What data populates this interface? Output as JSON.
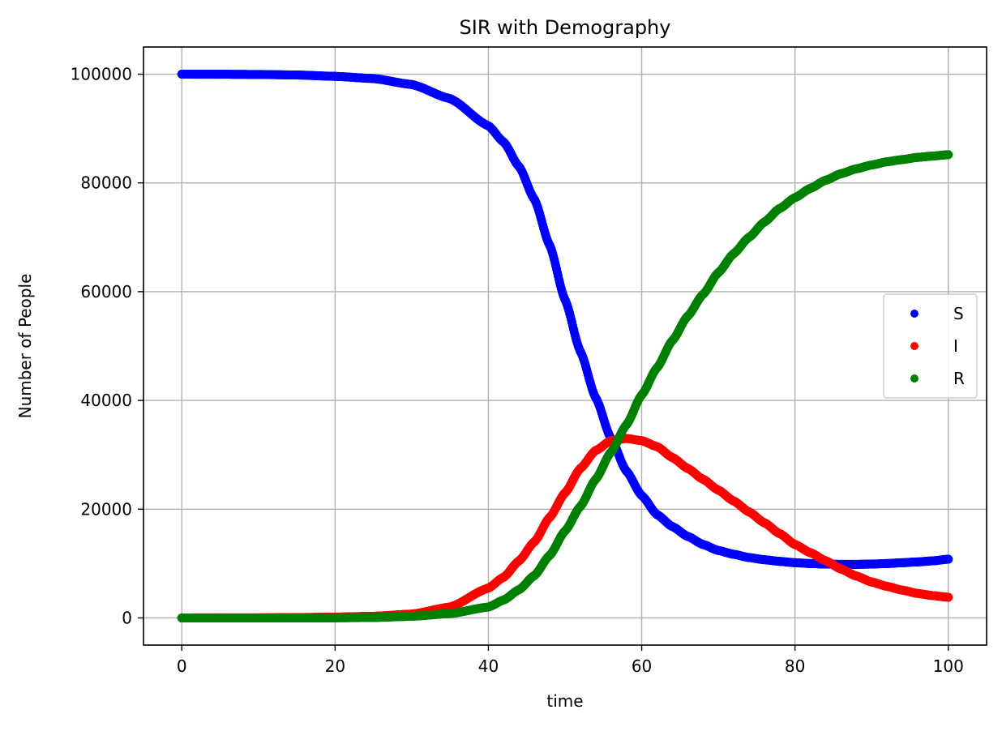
{
  "chart_data": {
    "type": "scatter",
    "title": "SIR with Demography",
    "xlabel": "time",
    "ylabel": "Number of People",
    "xlim": [
      -5,
      105
    ],
    "ylim": [
      -5000,
      105000
    ],
    "xticks": [
      0,
      20,
      40,
      60,
      80,
      100
    ],
    "yticks": [
      0,
      20000,
      40000,
      60000,
      80000,
      100000
    ],
    "xtick_labels": [
      "0",
      "20",
      "40",
      "60",
      "80",
      "100"
    ],
    "ytick_labels": [
      "0",
      "20000",
      "40000",
      "60000",
      "80000",
      "100000"
    ],
    "grid": true,
    "legend": {
      "position": "center-right",
      "entries": [
        "S",
        "I",
        "R"
      ]
    },
    "x": [
      0,
      5,
      10,
      15,
      20,
      25,
      30,
      35,
      40,
      42,
      44,
      46,
      48,
      50,
      52,
      54,
      56,
      58,
      60,
      62,
      64,
      66,
      68,
      70,
      72,
      74,
      76,
      78,
      80,
      82,
      84,
      86,
      88,
      90,
      92,
      94,
      96,
      98,
      100
    ],
    "series": [
      {
        "name": "S",
        "color": "#0000ff",
        "values": [
          100000,
          99990,
          99950,
          99850,
          99600,
          99200,
          98100,
          95500,
          90500,
          87500,
          83000,
          77000,
          68500,
          58500,
          49000,
          40500,
          33000,
          27000,
          22500,
          19000,
          16800,
          15000,
          13500,
          12400,
          11700,
          11100,
          10700,
          10400,
          10150,
          10000,
          9900,
          9850,
          9850,
          9900,
          10000,
          10150,
          10300,
          10500,
          10800
        ]
      },
      {
        "name": "I",
        "color": "#ff0000",
        "values": [
          0,
          10,
          20,
          60,
          150,
          300,
          700,
          2000,
          5500,
          7500,
          10500,
          14000,
          18500,
          23000,
          27500,
          30800,
          32600,
          33000,
          32600,
          31500,
          29500,
          27500,
          25500,
          23500,
          21500,
          19500,
          17500,
          15500,
          13500,
          12000,
          10500,
          9000,
          7700,
          6600,
          5800,
          5100,
          4500,
          4100,
          3800
        ]
      },
      {
        "name": "R",
        "color": "#008000",
        "values": [
          0,
          0,
          0,
          10,
          20,
          80,
          300,
          800,
          2000,
          3300,
          5200,
          7800,
          11500,
          16000,
          20500,
          25500,
          30500,
          35500,
          41000,
          46000,
          51000,
          55500,
          59500,
          63500,
          67000,
          70000,
          72800,
          75300,
          77300,
          79000,
          80500,
          81700,
          82600,
          83300,
          83900,
          84300,
          84700,
          84950,
          85200
        ]
      }
    ]
  }
}
